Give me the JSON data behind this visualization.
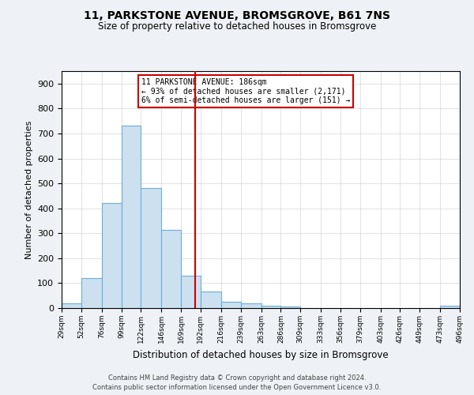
{
  "title1": "11, PARKSTONE AVENUE, BROMSGROVE, B61 7NS",
  "title2": "Size of property relative to detached houses in Bromsgrove",
  "xlabel": "Distribution of detached houses by size in Bromsgrove",
  "ylabel": "Number of detached properties",
  "bin_edges": [
    29,
    52,
    76,
    99,
    122,
    146,
    169,
    192,
    216,
    239,
    263,
    286,
    309,
    333,
    356,
    379,
    403,
    426,
    449,
    473,
    496
  ],
  "bar_heights": [
    20,
    120,
    420,
    730,
    480,
    315,
    130,
    65,
    25,
    20,
    10,
    5,
    0,
    0,
    0,
    0,
    0,
    0,
    0,
    8
  ],
  "bar_color": "#cce0f0",
  "bar_edge_color": "#6aaed6",
  "property_size": 186,
  "property_line_color": "#cc0000",
  "annotation_title": "11 PARKSTONE AVENUE: 186sqm",
  "annotation_line1": "← 93% of detached houses are smaller (2,171)",
  "annotation_line2": "6% of semi-detached houses are larger (151) →",
  "annotation_box_color": "#cc0000",
  "ylim": [
    0,
    950
  ],
  "yticks": [
    0,
    100,
    200,
    300,
    400,
    500,
    600,
    700,
    800,
    900
  ],
  "footer1": "Contains HM Land Registry data © Crown copyright and database right 2024.",
  "footer2": "Contains public sector information licensed under the Open Government Licence v3.0.",
  "background_color": "#eef2f7",
  "plot_bg_color": "#ffffff"
}
